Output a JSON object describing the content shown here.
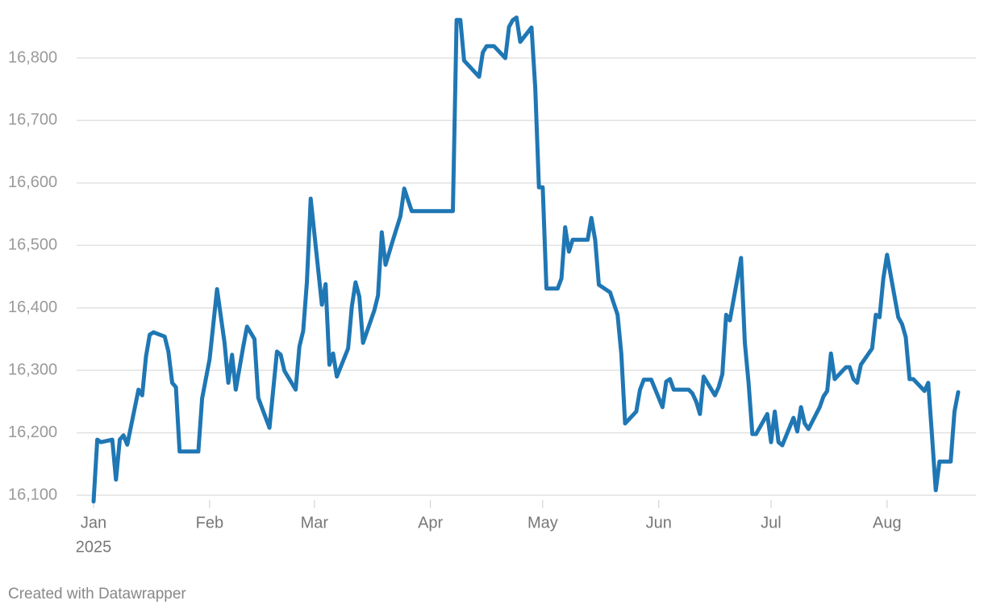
{
  "chart_data": {
    "type": "line",
    "x": [
      0,
      1,
      2,
      5,
      6,
      7,
      8,
      9,
      12,
      13,
      14,
      15,
      16,
      19,
      20,
      21,
      22,
      23,
      28,
      29,
      31,
      33,
      35,
      36,
      37,
      38,
      40,
      41,
      43,
      44,
      47,
      49,
      50,
      51,
      54,
      55,
      56,
      57,
      58,
      61,
      62,
      63,
      64,
      65,
      68,
      69,
      70,
      71,
      72,
      75,
      76,
      77,
      78,
      80,
      82,
      83,
      84,
      85,
      96,
      97,
      98,
      99,
      103,
      104,
      105,
      107,
      110,
      111,
      112,
      113,
      114,
      117,
      118,
      119,
      120,
      121,
      124,
      125,
      126,
      127,
      128,
      132,
      133,
      134,
      135,
      138,
      140,
      141,
      142,
      145,
      146,
      147,
      149,
      152,
      153,
      154,
      155,
      159,
      160,
      161,
      162,
      163,
      166,
      167,
      168,
      169,
      170,
      173,
      174,
      175,
      176,
      177,
      180,
      181,
      182,
      183,
      184,
      187,
      188,
      189,
      190,
      191,
      194,
      195,
      196,
      197,
      198,
      201,
      202,
      203,
      204,
      205,
      208,
      209,
      210,
      211,
      212,
      215,
      216,
      217,
      218,
      219,
      222,
      223,
      224,
      225,
      226,
      229,
      230,
      231
    ],
    "values": [
      16090,
      16189,
      16185,
      16189,
      16125,
      16189,
      16196,
      16181,
      16269,
      16260,
      16322,
      16357,
      16361,
      16354,
      16330,
      16280,
      16273,
      16170,
      16170,
      16255,
      16318,
      16430,
      16344,
      16280,
      16325,
      16269,
      16338,
      16370,
      16350,
      16256,
      16208,
      16330,
      16325,
      16299,
      16269,
      16338,
      16363,
      16441,
      16575,
      16405,
      16438,
      16309,
      16327,
      16290,
      16335,
      16402,
      16441,
      16418,
      16344,
      16396,
      16420,
      16521,
      16469,
      16509,
      16547,
      16591,
      16573,
      16555,
      16555,
      16861,
      16861,
      16796,
      16770,
      16809,
      16819,
      16819,
      16800,
      16850,
      16861,
      16865,
      16826,
      16849,
      16753,
      16593,
      16593,
      16431,
      16431,
      16447,
      16529,
      16490,
      16509,
      16509,
      16544,
      16509,
      16437,
      16425,
      16389,
      16327,
      16215,
      16234,
      16269,
      16285,
      16285,
      16241,
      16282,
      16286,
      16269,
      16269,
      16263,
      16250,
      16230,
      16290,
      16260,
      16273,
      16294,
      16389,
      16380,
      16480,
      16344,
      16280,
      16198,
      16198,
      16230,
      16185,
      16234,
      16185,
      16180,
      16224,
      16202,
      16241,
      16215,
      16206,
      16241,
      16258,
      16267,
      16327,
      16286,
      16305,
      16305,
      16286,
      16280,
      16309,
      16335,
      16389,
      16385,
      16447,
      16485,
      16385,
      16374,
      16353,
      16286,
      16286,
      16267,
      16280,
      16196,
      16108,
      16154,
      16154,
      16234,
      16265
    ],
    "color": "#1f77b4",
    "xlim": [
      0,
      231
    ],
    "xticks": [
      {
        "value": 0,
        "label": "Jan"
      },
      {
        "value": 31,
        "label": "Feb"
      },
      {
        "value": 59,
        "label": "Mar"
      },
      {
        "value": 90,
        "label": "Apr"
      },
      {
        "value": 120,
        "label": "May"
      },
      {
        "value": 151,
        "label": "Jun"
      },
      {
        "value": 181,
        "label": "Jul"
      },
      {
        "value": 212,
        "label": "Aug"
      }
    ],
    "x_year_label": "2025",
    "ylim": [
      16100,
      16800
    ],
    "yticks": [
      {
        "value": 16100,
        "label": "16,100"
      },
      {
        "value": 16200,
        "label": "16,200"
      },
      {
        "value": 16300,
        "label": "16,300"
      },
      {
        "value": 16400,
        "label": "16,400"
      },
      {
        "value": 16500,
        "label": "16,500"
      },
      {
        "value": 16600,
        "label": "16,600"
      },
      {
        "value": 16700,
        "label": "16,700"
      },
      {
        "value": 16800,
        "label": "16,800"
      }
    ],
    "grid": true,
    "footer": "Created with Datawrapper"
  }
}
